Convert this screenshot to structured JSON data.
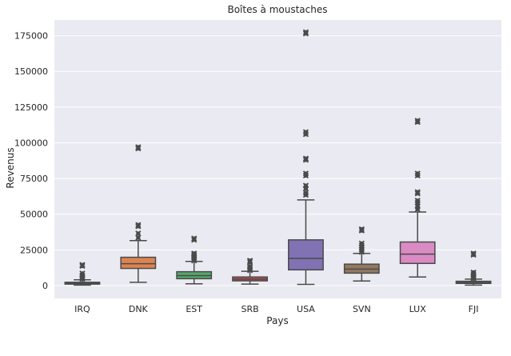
{
  "chart_data": {
    "type": "boxplot",
    "title": "Boîtes à moustaches",
    "xlabel": "Pays",
    "ylabel": "Revenus",
    "ylim": [
      -9000,
      186000
    ],
    "yticks": [
      0,
      25000,
      50000,
      75000,
      100000,
      125000,
      150000,
      175000
    ],
    "ytick_labels": [
      "0",
      "25000",
      "50000",
      "75000",
      "100000",
      "125000",
      "150000",
      "175000"
    ],
    "grid": true,
    "background": "#EAEAF2",
    "categories": [
      "IRQ",
      "DNK",
      "EST",
      "SRB",
      "USA",
      "SVN",
      "LUX",
      "FJI"
    ],
    "boxes": [
      {
        "category": "IRQ",
        "color": "#4C72B0",
        "whisker_low": 300,
        "q1": 1000,
        "median": 1500,
        "q3": 2300,
        "whisker_high": 4000,
        "outliers": [
          4600,
          5200,
          6000,
          7000,
          8500,
          13700,
          14500
        ]
      },
      {
        "category": "DNK",
        "color": "#DD8452",
        "whisker_low": 2300,
        "q1": 12000,
        "median": 15300,
        "q3": 19800,
        "whisker_high": 31500,
        "outliers": [
          33500,
          36500,
          41500,
          42500,
          96000,
          97000
        ]
      },
      {
        "category": "EST",
        "color": "#55A868",
        "whisker_low": 1200,
        "q1": 4800,
        "median": 7000,
        "q3": 9700,
        "whisker_high": 16900,
        "outliers": [
          17500,
          18500,
          19500,
          20500,
          21500,
          22500,
          32000,
          33000
        ]
      },
      {
        "category": "SRB",
        "color": "#C44E52",
        "whisker_low": 1000,
        "q1": 3300,
        "median": 4500,
        "q3": 6000,
        "whisker_high": 10000,
        "outliers": [
          10700,
          11500,
          12500,
          13500,
          16500,
          17500
        ]
      },
      {
        "category": "USA",
        "color": "#8172B3",
        "whisker_low": 800,
        "q1": 11000,
        "median": 19000,
        "q3": 32000,
        "whisker_high": 60000,
        "outliers": [
          63500,
          65000,
          68000,
          70000,
          77000,
          78500,
          88000,
          89000,
          106000,
          107500,
          176500,
          177500
        ]
      },
      {
        "category": "SVN",
        "color": "#937860",
        "whisker_low": 3200,
        "q1": 8700,
        "median": 11500,
        "q3": 15000,
        "whisker_high": 22500,
        "outliers": [
          23500,
          25000,
          26500,
          28000,
          29500,
          38500,
          39500
        ]
      },
      {
        "category": "LUX",
        "color": "#DA8BC3",
        "whisker_low": 6000,
        "q1": 15500,
        "median": 22000,
        "q3": 30500,
        "whisker_high": 51500,
        "outliers": [
          53500,
          55500,
          58000,
          59500,
          64500,
          65500,
          77000,
          78500,
          114500,
          115500
        ]
      },
      {
        "category": "FJI",
        "color": "#8C8C8C",
        "whisker_low": 300,
        "q1": 1500,
        "median": 2200,
        "q3": 3000,
        "whisker_high": 4500,
        "outliers": [
          5000,
          5500,
          6200,
          7000,
          8000,
          9200,
          21500,
          22500
        ]
      }
    ]
  }
}
